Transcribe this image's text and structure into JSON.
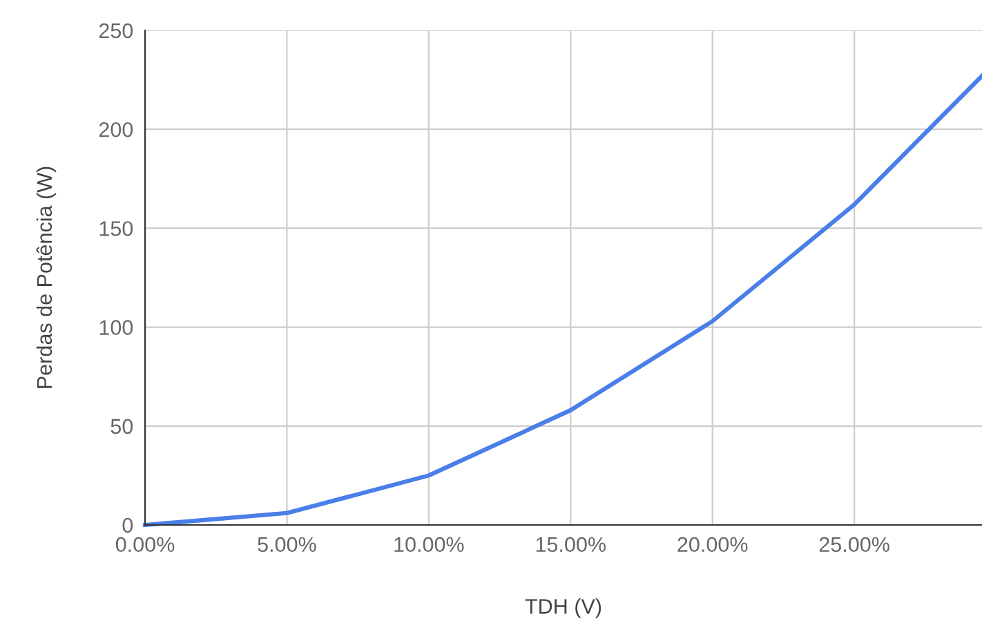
{
  "chart_data": {
    "type": "line",
    "xlabel": "TDH (V)",
    "ylabel": "Perdas de Potência (W)",
    "x": [
      0,
      5,
      10,
      15,
      20,
      25,
      29.5
    ],
    "series": [
      {
        "color": "#4a7ee8",
        "values": [
          0,
          6,
          25,
          58,
          103,
          162,
          227
        ]
      }
    ],
    "xlim": [
      0,
      29.5
    ],
    "xticks": [
      {
        "value": 0,
        "label": "0.00%"
      },
      {
        "value": 5,
        "label": "5.00%"
      },
      {
        "value": 10,
        "label": "10.00%"
      },
      {
        "value": 15,
        "label": "15.00%"
      },
      {
        "value": 20,
        "label": "20.00%"
      },
      {
        "value": 25,
        "label": "25.00%"
      }
    ],
    "ylim": [
      0,
      250
    ],
    "yticks": [
      0,
      50,
      100,
      150,
      200,
      250
    ],
    "grid": true,
    "marker": "none",
    "line_style": "solid"
  }
}
